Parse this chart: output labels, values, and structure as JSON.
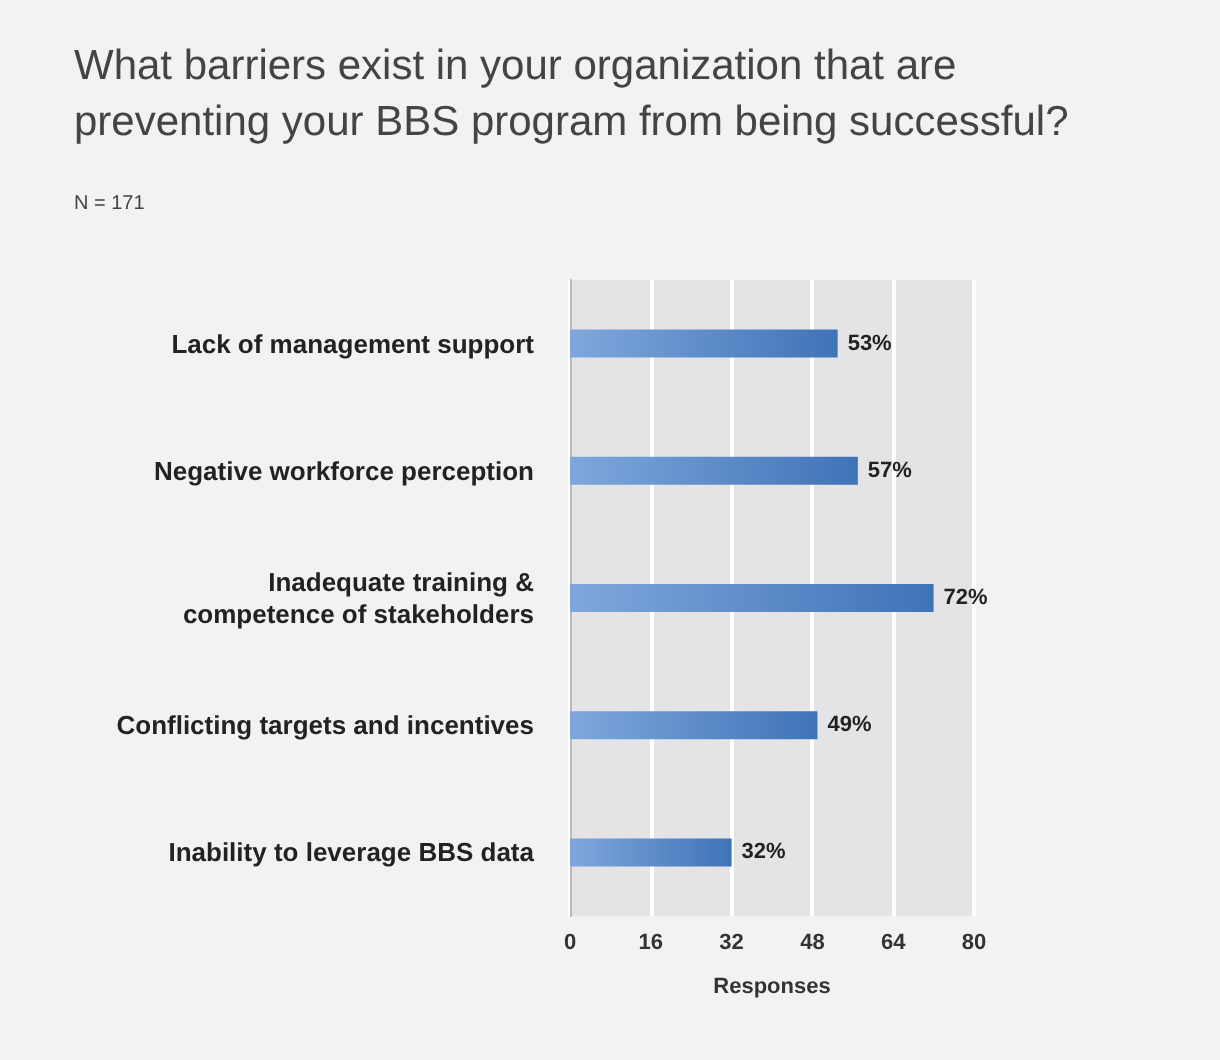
{
  "chart_data": {
    "type": "bar",
    "orientation": "horizontal",
    "title": "What barriers exist in your organization that are\npreventing your BBS program from being successful?",
    "subtitle": "N = 171",
    "xlabel": "Responses",
    "categories": [
      "Lack of management support",
      "Negative workforce perception",
      "Inadequate training &\ncompetence of stakeholders",
      "Conflicting targets and incentives",
      "Inability to leverage BBS data"
    ],
    "values": [
      53,
      57,
      72,
      49,
      32
    ],
    "value_labels": [
      "53%",
      "57%",
      "72%",
      "49%",
      "32%"
    ],
    "color": "#3f73b8",
    "xlim": [
      0,
      80
    ],
    "xticks": [
      0,
      16,
      32,
      48,
      64,
      80
    ],
    "grid": "x"
  }
}
